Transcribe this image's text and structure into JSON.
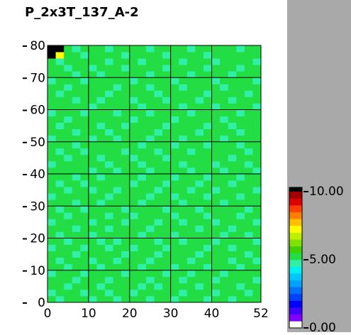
{
  "chart_data": {
    "type": "heatmap",
    "title": "P_2x3T_137_A-2",
    "xlim": [
      0,
      52
    ],
    "ylim": [
      0,
      80
    ],
    "xticks": [
      0,
      10,
      20,
      30,
      40,
      52
    ],
    "yticks": [
      0,
      10,
      20,
      30,
      40,
      50,
      60,
      70,
      80
    ],
    "grid": true,
    "grid_color": "#000000",
    "colorbar": {
      "lim": [
        0,
        10
      ],
      "ticks": [
        {
          "value": 0,
          "label": "0.00"
        },
        {
          "value": 5,
          "label": "5.00"
        },
        {
          "value": 10,
          "label": "10.00"
        }
      ],
      "colors": [
        "#ffffff",
        "#8000ff",
        "#4000ff",
        "#0000ff",
        "#0040ff",
        "#0070ff",
        "#00a0ff",
        "#00c8ff",
        "#00f0f0",
        "#30f0a8",
        "#22dd44",
        "#40d000",
        "#80e000",
        "#c0f000",
        "#ffff00",
        "#ffc000",
        "#ff8000",
        "#ff4000",
        "#e00000",
        "#a00000"
      ],
      "over_color": "#000000"
    },
    "values": [
      [
        5.1,
        4.8,
        5.2,
        5.0,
        5.3,
        4.9,
        5.1,
        5.2,
        4.7,
        5.0,
        5.1,
        5.3,
        4.9,
        5.2,
        5.0,
        4.8,
        5.1,
        5.2,
        5.0,
        4.9,
        5.3,
        5.1,
        4.8,
        5.0,
        5.2,
        5.1
      ],
      [
        4.9,
        5.2,
        5.0,
        5.1,
        4.8,
        5.2,
        5.3,
        4.9,
        5.1,
        5.0,
        4.7,
        5.1,
        5.2,
        5.0,
        5.3,
        5.1,
        4.9,
        5.0,
        5.2,
        5.1,
        4.8,
        5.0,
        5.2,
        5.1,
        4.9,
        5.0
      ],
      [
        5.2,
        5.0,
        4.8,
        5.1,
        5.2,
        5.0,
        4.9,
        5.1,
        5.3,
        5.2,
        5.0,
        4.9,
        5.1,
        4.8,
        5.0,
        5.2,
        5.1,
        5.3,
        4.9,
        5.0,
        5.1,
        5.2,
        5.0,
        4.7,
        5.1,
        5.3
      ],
      [
        5.0,
        5.1,
        5.3,
        4.9,
        5.0,
        5.1,
        5.2,
        4.8,
        5.0,
        5.1,
        5.2,
        5.0,
        4.9,
        5.1,
        5.2,
        5.0,
        4.8,
        5.1,
        5.0,
        5.2,
        4.9,
        5.1,
        5.3,
        5.0,
        5.1,
        4.9
      ],
      [
        4.8,
        5.2,
        5.1,
        5.0,
        4.9,
        5.3,
        5.0,
        5.1,
        5.2,
        4.9,
        5.1,
        5.0,
        5.2,
        5.3,
        4.9,
        5.1,
        5.0,
        4.8,
        5.2,
        5.1,
        5.0,
        4.9,
        5.1,
        5.2,
        5.0,
        5.1
      ],
      [
        5.1,
        5.0,
        4.9,
        5.2,
        5.1,
        5.0,
        4.8,
        5.2,
        5.1,
        5.0,
        5.3,
        4.9,
        5.0,
        5.1,
        5.2,
        4.8,
        5.3,
        5.1,
        5.0,
        4.9,
        5.2,
        5.0,
        5.1,
        4.9,
        5.3,
        5.0
      ],
      [
        5.3,
        4.9,
        5.1,
        5.0,
        5.2,
        4.8,
        5.1,
        5.0,
        4.9,
        5.2,
        5.0,
        5.1,
        4.8,
        5.0,
        5.1,
        5.2,
        5.0,
        4.9,
        5.1,
        5.3,
        5.0,
        5.1,
        4.8,
        5.2,
        5.0,
        4.9
      ],
      [
        5.0,
        5.1,
        5.2,
        4.8,
        5.0,
        5.1,
        5.3,
        5.0,
        5.2,
        4.9,
        5.1,
        5.2,
        5.0,
        4.9,
        5.0,
        5.1,
        5.2,
        5.0,
        4.8,
        5.1,
        5.0,
        5.3,
        5.1,
        5.0,
        4.8,
        5.2
      ],
      [
        4.9,
        5.0,
        5.1,
        5.3,
        4.9,
        5.0,
        5.1,
        4.9,
        5.0,
        5.1,
        4.8,
        5.0,
        5.3,
        5.1,
        4.9,
        5.0,
        5.1,
        5.2,
        5.0,
        4.9,
        5.1,
        5.0,
        4.9,
        5.1,
        5.2,
        5.0
      ],
      [
        5.2,
        5.1,
        4.9,
        5.0,
        5.1,
        5.2,
        4.9,
        5.1,
        4.8,
        5.0,
        5.2,
        5.1,
        5.0,
        4.9,
        5.2,
        5.1,
        4.8,
        5.0,
        5.3,
        5.0,
        4.9,
        5.1,
        5.2,
        5.0,
        5.1,
        4.8
      ],
      [
        5.0,
        4.8,
        5.2,
        5.1,
        5.0,
        4.9,
        5.2,
        5.0,
        5.1,
        5.3,
        5.0,
        4.9,
        5.1,
        5.2,
        5.0,
        4.8,
        5.1,
        5.0,
        5.1,
        5.2,
        5.0,
        4.9,
        5.0,
        5.3,
        4.9,
        5.1
      ],
      [
        5.1,
        5.2,
        5.0,
        4.9,
        5.3,
        5.1,
        5.0,
        4.8,
        5.2,
        5.0,
        5.1,
        5.2,
        4.9,
        5.0,
        5.1,
        5.3,
        5.0,
        5.1,
        4.9,
        5.0,
        5.2,
        5.1,
        4.8,
        5.0,
        5.1,
        5.2
      ],
      [
        4.8,
        5.0,
        5.1,
        5.2,
        5.0,
        4.9,
        5.1,
        5.2,
        5.0,
        4.9,
        5.0,
        5.1,
        5.2,
        4.8,
        5.0,
        5.1,
        4.9,
        5.2,
        5.0,
        5.1,
        4.8,
        5.0,
        5.1,
        5.2,
        5.0,
        4.9
      ],
      [
        5.2,
        5.1,
        4.9,
        5.0,
        5.1,
        5.2,
        5.0,
        4.9,
        5.3,
        5.1,
        4.9,
        5.0,
        5.1,
        5.0,
        5.2,
        4.9,
        5.1,
        5.0,
        5.2,
        4.9,
        5.1,
        5.3,
        5.0,
        4.9,
        5.1,
        5.0
      ],
      [
        5.0,
        4.9,
        5.3,
        5.1,
        4.8,
        5.0,
        5.2,
        5.1,
        5.0,
        4.8,
        5.2,
        5.1,
        5.0,
        5.2,
        4.9,
        5.0,
        5.2,
        5.1,
        4.9,
        5.0,
        5.1,
        5.0,
        5.2,
        5.1,
        4.8,
        5.2
      ],
      [
        5.1,
        5.0,
        5.0,
        4.9,
        5.2,
        5.1,
        4.8,
        5.0,
        5.1,
        5.2,
        5.0,
        4.9,
        5.3,
        5.0,
        5.1,
        5.2,
        4.9,
        5.0,
        5.1,
        5.2,
        5.0,
        4.8,
        5.1,
        5.0,
        5.2,
        5.1
      ],
      [
        4.9,
        5.2,
        5.1,
        5.0,
        5.0,
        5.3,
        5.1,
        4.9,
        5.0,
        5.1,
        5.2,
        5.0,
        4.8,
        5.1,
        5.0,
        4.9,
        5.1,
        5.3,
        5.0,
        4.8,
        5.2,
        5.1,
        5.0,
        4.9,
        5.0,
        5.1
      ],
      [
        5.0,
        5.1,
        4.8,
        5.2,
        5.1,
        4.9,
        5.0,
        5.2,
        4.9,
        5.0,
        5.1,
        5.3,
        5.0,
        4.9,
        5.2,
        5.1,
        5.0,
        4.8,
        5.2,
        5.1,
        4.9,
        5.0,
        5.2,
        5.1,
        5.0,
        4.9
      ],
      [
        5.3,
        4.9,
        5.0,
        5.1,
        4.9,
        5.0,
        5.2,
        5.1,
        5.0,
        5.2,
        4.8,
        5.0,
        5.1,
        5.2,
        4.9,
        5.0,
        5.1,
        5.0,
        4.9,
        5.2,
        5.1,
        5.0,
        4.9,
        5.0,
        5.3,
        5.1
      ],
      [
        5.1,
        5.0,
        5.2,
        4.9,
        5.0,
        5.1,
        4.9,
        5.0,
        5.2,
        5.1,
        5.0,
        4.9,
        5.2,
        5.0,
        5.1,
        4.8,
        5.2,
        5.1,
        5.0,
        4.9,
        5.0,
        5.2,
        5.1,
        4.8,
        5.0,
        5.0
      ],
      [
        5.0,
        5.2,
        5.1,
        5.0,
        5.3,
        4.8,
        5.0,
        5.1,
        4.9,
        5.0,
        5.2,
        5.1,
        4.9,
        5.1,
        5.0,
        5.2,
        5.0,
        4.9,
        5.1,
        5.0,
        5.2,
        4.9,
        5.0,
        5.1,
        5.2,
        4.9
      ],
      [
        4.9,
        5.0,
        5.1,
        5.2,
        5.0,
        5.1,
        5.2,
        4.9,
        5.1,
        5.3,
        5.0,
        4.8,
        5.0,
        5.2,
        5.1,
        5.0,
        4.9,
        5.2,
        5.0,
        5.1,
        4.9,
        5.1,
        5.2,
        5.0,
        4.8,
        5.1
      ],
      [
        5.2,
        5.1,
        4.9,
        5.0,
        5.1,
        5.0,
        4.9,
        5.2,
        5.0,
        5.1,
        4.9,
        5.2,
        5.1,
        5.0,
        4.8,
        5.1,
        5.2,
        5.0,
        5.3,
        5.0,
        5.1,
        5.0,
        4.9,
        5.2,
        5.1,
        5.0
      ],
      [
        5.0,
        4.9,
        5.2,
        5.1,
        4.9,
        5.2,
        5.0,
        5.1,
        5.0,
        4.8,
        5.1,
        5.0,
        5.2,
        4.9,
        5.1,
        5.0,
        5.1,
        4.9,
        5.0,
        5.2,
        5.0,
        5.1,
        5.3,
        5.0,
        4.9,
        5.2
      ],
      [
        5.1,
        5.0,
        5.0,
        4.8,
        5.2,
        5.0,
        5.1,
        5.0,
        5.2,
        5.1,
        5.0,
        4.9,
        5.0,
        5.1,
        5.2,
        4.9,
        5.0,
        5.1,
        5.2,
        4.9,
        5.1,
        5.0,
        5.1,
        4.9,
        5.0,
        5.1
      ],
      [
        4.8,
        5.1,
        5.2,
        5.0,
        5.1,
        4.9,
        5.3,
        5.0,
        4.9,
        5.0,
        5.2,
        5.1,
        4.9,
        5.0,
        5.1,
        5.2,
        4.8,
        5.0,
        5.1,
        5.0,
        5.2,
        4.9,
        5.0,
        5.1,
        5.2,
        5.0
      ],
      [
        5.0,
        5.2,
        5.1,
        4.9,
        5.0,
        5.1,
        5.0,
        4.9,
        5.1,
        5.2,
        5.0,
        5.1,
        5.3,
        4.9,
        5.0,
        5.1,
        5.2,
        5.0,
        4.9,
        5.1,
        5.0,
        5.2,
        5.1,
        4.8,
        5.0,
        5.1
      ],
      [
        5.2,
        4.9,
        5.0,
        5.1,
        5.2,
        5.0,
        4.8,
        5.1,
        5.0,
        4.9,
        5.1,
        5.0,
        5.1,
        5.2,
        4.9,
        5.0,
        5.1,
        5.2,
        5.0,
        4.8,
        5.1,
        5.0,
        4.9,
        5.2,
        5.1,
        5.0
      ],
      [
        5.1,
        5.0,
        4.9,
        5.2,
        5.0,
        5.1,
        5.2,
        5.0,
        5.3,
        5.1,
        4.9,
        5.0,
        5.0,
        5.1,
        5.2,
        4.9,
        5.0,
        5.1,
        5.2,
        5.0,
        5.1,
        4.9,
        5.0,
        5.1,
        5.0,
        5.2
      ],
      [
        4.9,
        5.1,
        5.0,
        5.1,
        4.9,
        5.2,
        5.0,
        5.1,
        4.9,
        5.0,
        5.2,
        5.1,
        4.8,
        5.0,
        5.1,
        5.0,
        5.2,
        4.9,
        5.0,
        5.1,
        5.2,
        5.0,
        5.1,
        4.9,
        5.2,
        5.0
      ],
      [
        5.0,
        5.2,
        5.1,
        5.0,
        5.1,
        4.9,
        5.1,
        5.0,
        5.1,
        5.2,
        5.0,
        4.9,
        5.1,
        5.2,
        5.0,
        5.1,
        4.9,
        5.0,
        5.2,
        5.1,
        4.9,
        5.1,
        5.0,
        5.2,
        5.0,
        4.9
      ],
      [
        5.1,
        5.0,
        5.2,
        4.9,
        5.0,
        5.1,
        4.9,
        5.2,
        5.0,
        5.1,
        4.8,
        5.0,
        5.2,
        5.0,
        4.9,
        5.2,
        5.1,
        5.0,
        4.9,
        5.0,
        5.1,
        5.2,
        4.9,
        5.0,
        5.1,
        5.1
      ],
      [
        5.0,
        4.9,
        5.1,
        5.2,
        5.1,
        5.0,
        5.2,
        4.9,
        5.1,
        5.0,
        5.1,
        5.2,
        5.0,
        4.9,
        5.1,
        5.0,
        5.2,
        5.1,
        5.0,
        4.9,
        5.2,
        5.0,
        5.1,
        5.0,
        4.9,
        5.0
      ],
      [
        5.2,
        5.1,
        4.9,
        5.0,
        5.2,
        5.1,
        5.0,
        5.1,
        4.9,
        5.3,
        5.0,
        5.1,
        4.9,
        5.1,
        5.0,
        5.2,
        4.9,
        5.0,
        5.1,
        5.2,
        5.0,
        4.9,
        5.2,
        5.1,
        5.0,
        5.1
      ],
      [
        4.9,
        5.0,
        5.2,
        5.1,
        4.9,
        5.0,
        5.1,
        5.0,
        5.2,
        5.0,
        4.9,
        5.1,
        5.2,
        5.0,
        5.1,
        4.9,
        5.0,
        5.2,
        5.0,
        5.1,
        4.9,
        5.1,
        5.0,
        5.2,
        5.1,
        4.9
      ],
      [
        5.1,
        5.2,
        5.0,
        4.9,
        5.1,
        5.2,
        4.9,
        5.1,
        5.0,
        5.1,
        5.2,
        5.0,
        4.9,
        5.1,
        5.2,
        5.0,
        5.1,
        4.9,
        5.2,
        5.0,
        5.1,
        5.0,
        4.9,
        5.0,
        5.2,
        5.0
      ],
      [
        5.0,
        5.1,
        4.9,
        5.2,
        5.0,
        4.9,
        5.1,
        5.2,
        5.0,
        4.9,
        5.0,
        5.1,
        5.2,
        5.0,
        4.9,
        5.1,
        5.2,
        5.0,
        5.1,
        4.9,
        5.0,
        5.2,
        5.1,
        4.9,
        5.0,
        5.1
      ],
      [
        5.0,
        4.9,
        5.1,
        5.0,
        5.2,
        5.1,
        5.0,
        4.9,
        5.1,
        5.2,
        5.0,
        4.9,
        5.1,
        5.0,
        5.2,
        5.1,
        4.9,
        5.0,
        5.1,
        5.2,
        4.9,
        5.0,
        5.1,
        5.2,
        5.0,
        4.9
      ],
      [
        11.5,
        7.2,
        5.0,
        5.1,
        4.9,
        5.0,
        5.2,
        5.1,
        5.0,
        4.9,
        5.1,
        5.2,
        5.0,
        5.1,
        4.9,
        5.0,
        5.1,
        5.2,
        5.0,
        4.9,
        5.1,
        5.0,
        5.2,
        5.0,
        5.1,
        5.0
      ],
      [
        12.0,
        11.0,
        5.1,
        4.9,
        5.0,
        5.2,
        5.0,
        4.9,
        5.1,
        5.0,
        5.2,
        5.1,
        4.9,
        5.0,
        5.1,
        5.2,
        5.0,
        4.9,
        5.1,
        5.0,
        5.2,
        5.1,
        5.0,
        4.9,
        5.1,
        5.2
      ]
    ]
  }
}
